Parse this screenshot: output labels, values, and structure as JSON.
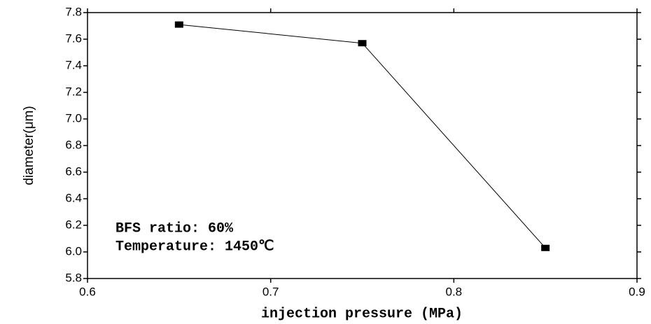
{
  "chart_data": {
    "type": "line",
    "x": [
      0.65,
      0.75,
      0.85
    ],
    "series": [
      {
        "color": "#000000",
        "values": [
          7.71,
          7.57,
          6.03
        ]
      }
    ],
    "xlim": [
      0.6,
      0.9
    ],
    "xticks": [
      0.6,
      0.7,
      0.8,
      0.9
    ],
    "ylim": [
      5.8,
      7.8
    ],
    "yticks": [
      5.8,
      {
        "value": 6,
        "label": "6.0"
      },
      6.2,
      6.4,
      6.6,
      6.8,
      {
        "value": 7,
        "label": "7.0"
      },
      7.2,
      7.4,
      7.6,
      7.8
    ],
    "xlabel": "injection pressure (MPa)",
    "ylabel": "diameter(μm)",
    "annotations": [
      "BFS ratio: 60%",
      "Temperature: 1450℃"
    ]
  }
}
